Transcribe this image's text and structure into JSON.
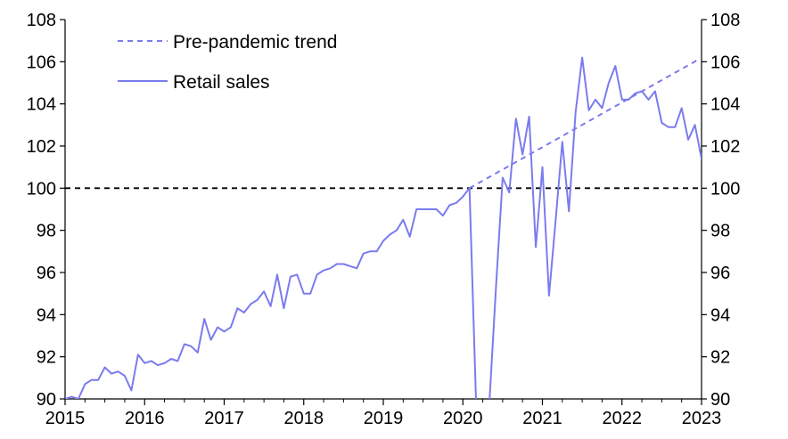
{
  "chart_data": {
    "type": "line",
    "title": "",
    "xlabel": "",
    "ylabel": "",
    "xlim": [
      2015,
      2023
    ],
    "ylim": [
      90,
      108
    ],
    "x_ticks": [
      "2015",
      "2016",
      "2017",
      "2018",
      "2019",
      "2020",
      "2021",
      "2022",
      "2023"
    ],
    "y_ticks": [
      "90",
      "92",
      "94",
      "96",
      "98",
      "100",
      "102",
      "104",
      "106",
      "108"
    ],
    "legend_position": "top-left",
    "reference_line": {
      "value": 100,
      "style": "dashed",
      "color": "#000000"
    },
    "colors": {
      "series": "#7b7bef",
      "reference": "#000000"
    },
    "series": [
      {
        "name": "Retail sales",
        "style": "solid",
        "x_start": "2015-01",
        "frequency": "monthly",
        "values": [
          90.0,
          90.1,
          90.0,
          90.7,
          90.9,
          90.9,
          91.5,
          91.2,
          91.3,
          91.1,
          90.4,
          92.1,
          91.7,
          91.8,
          91.6,
          91.7,
          91.9,
          91.8,
          92.6,
          92.5,
          92.2,
          93.8,
          92.8,
          93.4,
          93.2,
          93.4,
          94.3,
          94.1,
          94.5,
          94.7,
          95.1,
          94.4,
          95.9,
          94.3,
          95.8,
          95.9,
          95.0,
          95.0,
          95.9,
          96.1,
          96.2,
          96.4,
          96.4,
          96.3,
          96.2,
          96.9,
          97.0,
          97.0,
          97.5,
          97.8,
          98.0,
          98.5,
          97.7,
          99.0,
          99.0,
          99.0,
          99.0,
          98.7,
          99.2,
          99.3,
          99.6,
          100.0,
          89.8,
          89.8,
          89.8,
          95.3,
          100.5,
          99.8,
          103.3,
          101.6,
          103.4,
          97.2,
          101.0,
          94.9,
          98.5,
          102.2,
          98.9,
          103.6,
          106.2,
          103.7,
          104.2,
          103.8,
          105.0,
          105.8,
          104.2,
          104.2,
          104.5,
          104.6,
          104.2,
          104.6,
          103.1,
          102.9,
          102.9,
          103.8,
          102.3,
          103.0,
          101.4,
          101.7
        ]
      },
      {
        "name": "Pre-pandemic trend",
        "style": "dashed",
        "x": [
          2020.0833,
          2022.9583
        ],
        "values": [
          100.0,
          106.1
        ]
      }
    ]
  }
}
